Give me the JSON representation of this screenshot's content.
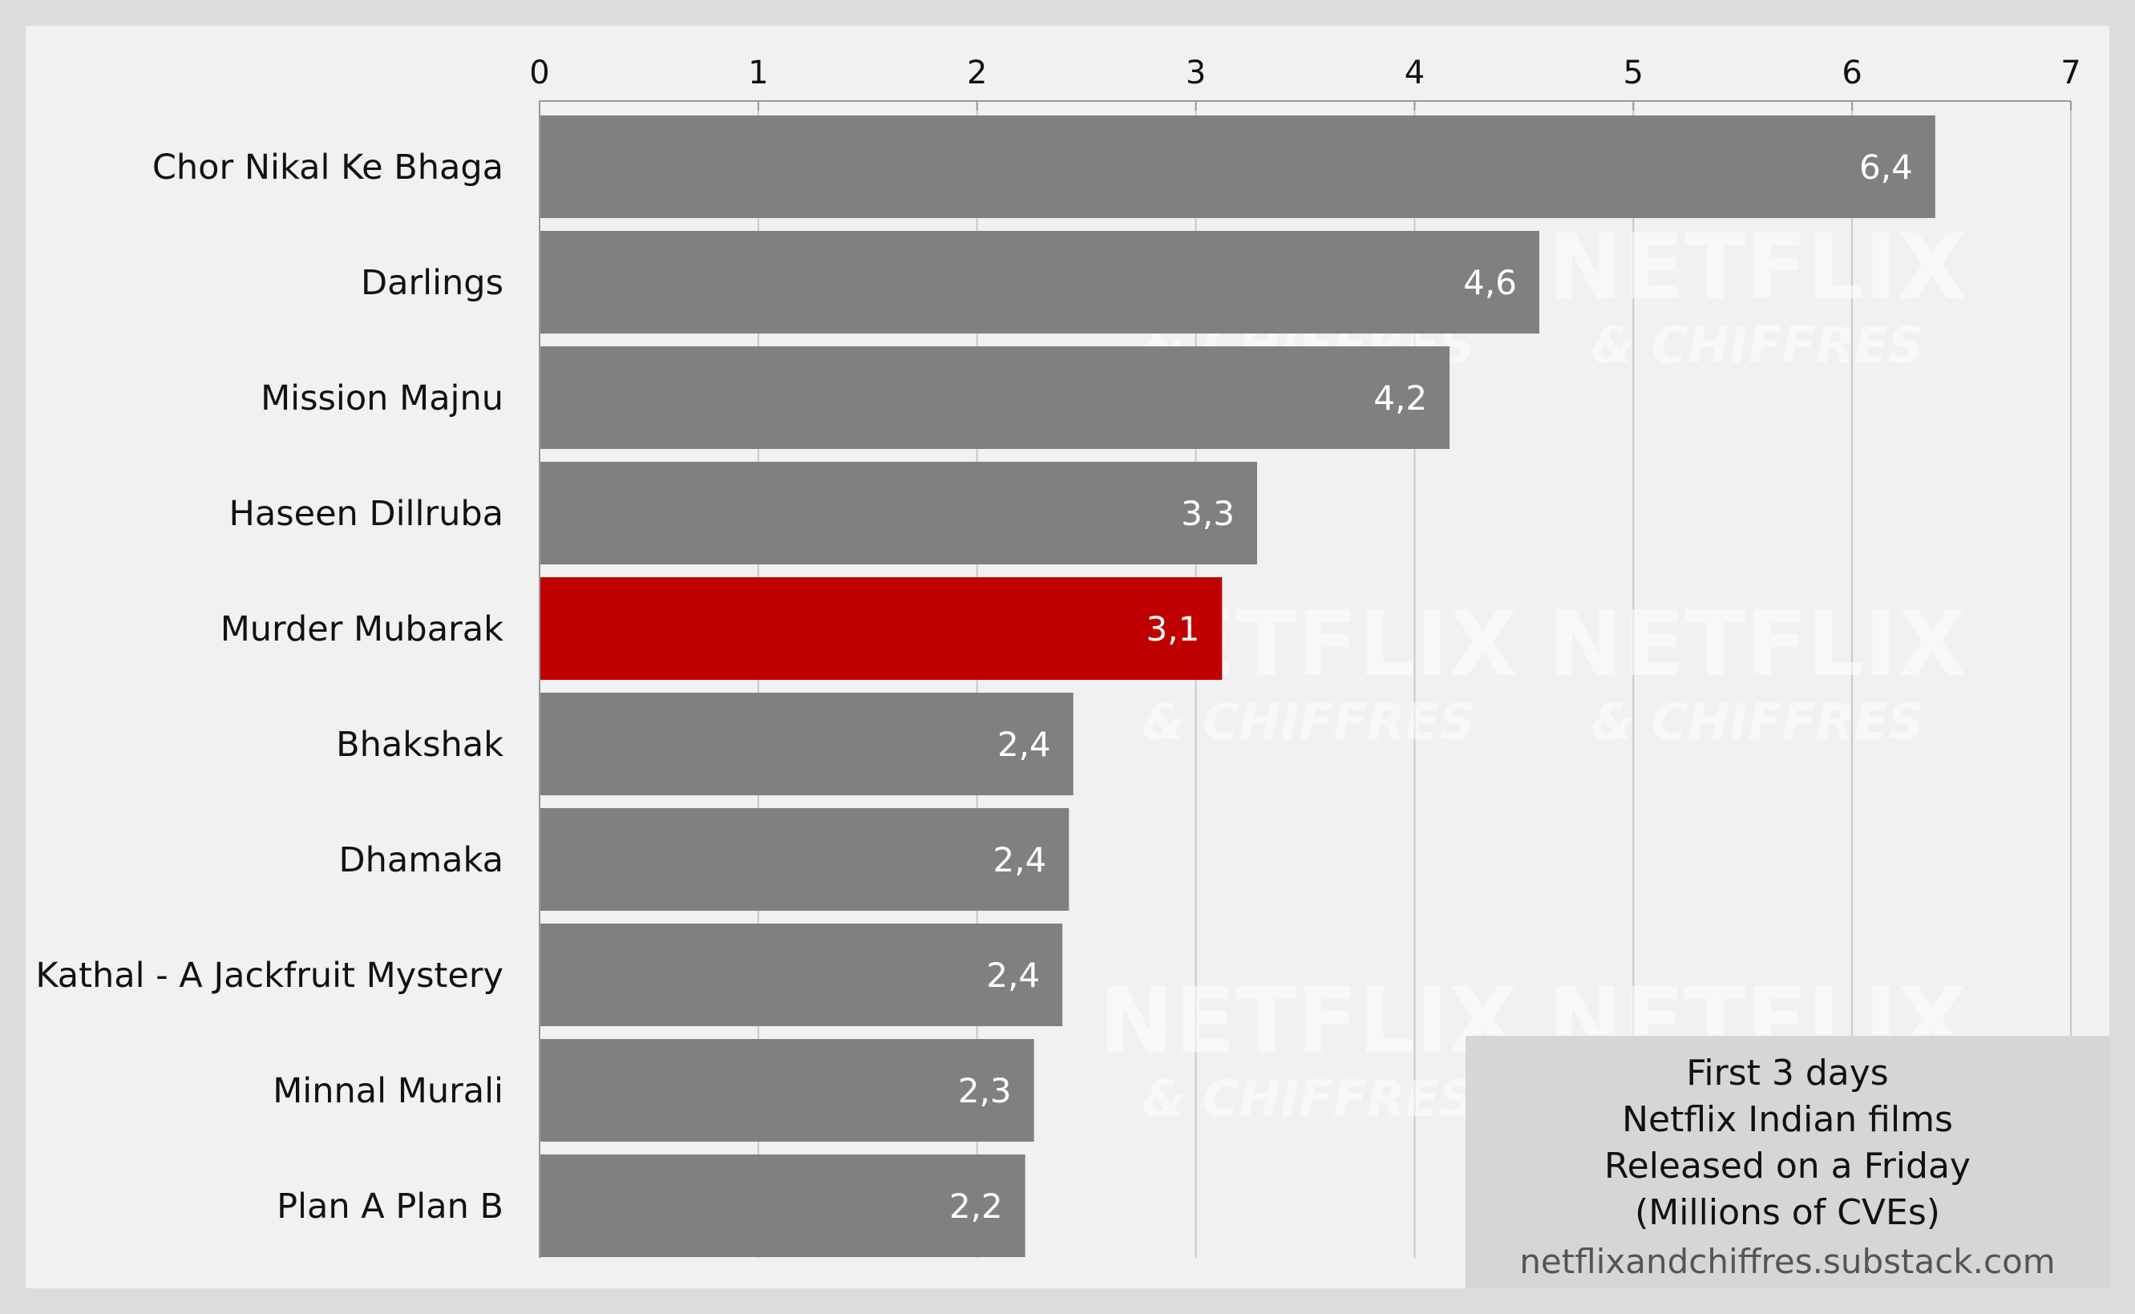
{
  "chart_data": {
    "type": "bar",
    "orientation": "horizontal",
    "categories": [
      "Chor Nikal Ke Bhaga",
      "Darlings",
      "Mission Majnu",
      "Haseen Dillruba",
      "Murder Mubarak",
      "Bhakshak",
      "Dhamaka",
      "Kathal - A Jackfruit Mystery",
      "Minnal Murali",
      "Plan A Plan B"
    ],
    "values": [
      6.38,
      4.57,
      4.16,
      3.28,
      3.12,
      2.44,
      2.42,
      2.39,
      2.26,
      2.22
    ],
    "value_labels": [
      "6,4",
      "4,6",
      "4,2",
      "3,3",
      "3,1",
      "2,4",
      "2,4",
      "2,4",
      "2,3",
      "2,2"
    ],
    "highlight_index": 4,
    "colors": {
      "bar": "#808080",
      "highlight": "#c00000",
      "grid": "#c8c8c8",
      "background": "#f1f1f1"
    },
    "xlim": [
      0,
      7
    ],
    "xticks": [
      "0",
      "1",
      "2",
      "3",
      "4",
      "5",
      "6",
      "7"
    ],
    "x_axis_position": "top",
    "grid": true
  },
  "info_box": {
    "lines": [
      "First 3 days",
      "Netflix Indian films",
      "Released on a Friday",
      "(Millions of CVEs)"
    ],
    "source": "netflixandchiffres.substack.com"
  },
  "watermark": {
    "main": "NETFLIX",
    "sub": "& CHIFFRES"
  }
}
